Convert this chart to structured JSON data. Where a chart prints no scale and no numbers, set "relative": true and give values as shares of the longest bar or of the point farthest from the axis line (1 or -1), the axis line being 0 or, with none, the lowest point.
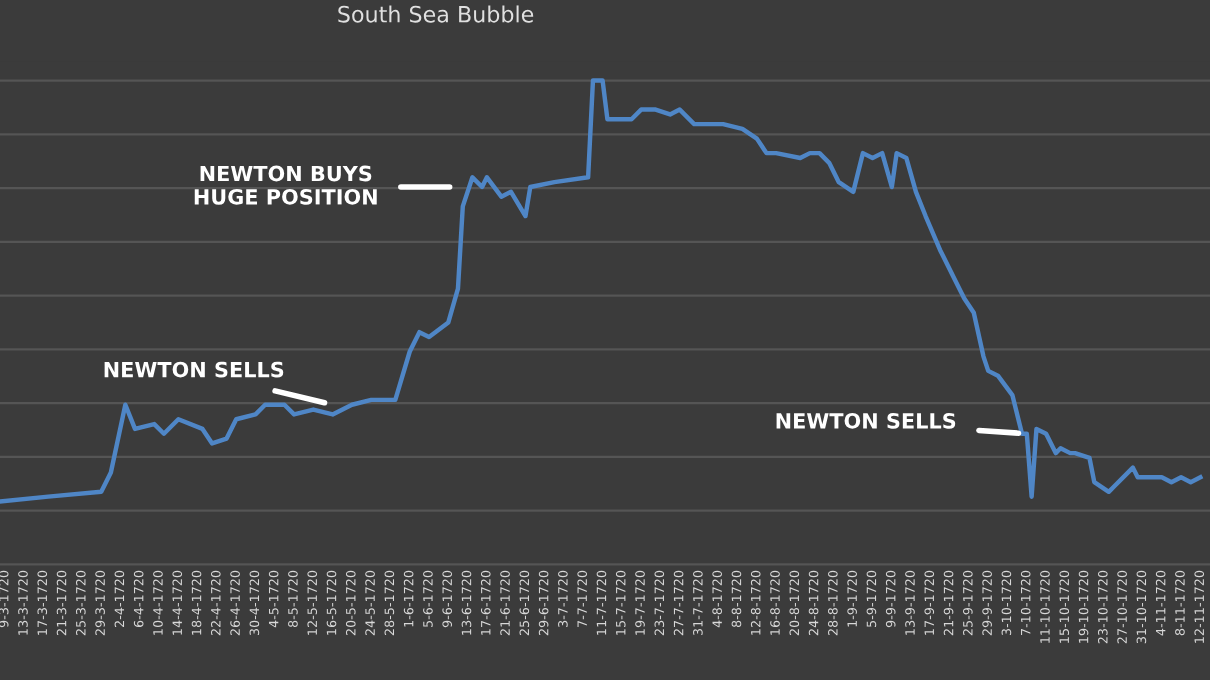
{
  "chart_data": {
    "type": "line",
    "title": "South Sea Bubble",
    "relative": true,
    "grid": "y",
    "tick_labels": "x",
    "marker": "none",
    "line_style": "solid",
    "x": [
      "1720-03-08",
      "1720-03-18",
      "1720-03-29",
      "1720-03-31",
      "1720-04-03",
      "1720-04-05",
      "1720-04-09",
      "1720-04-11",
      "1720-04-14",
      "1720-04-19",
      "1720-04-21",
      "1720-04-24",
      "1720-04-26",
      "1720-04-30",
      "1720-05-02",
      "1720-05-06",
      "1720-05-08",
      "1720-05-12",
      "1720-05-16",
      "1720-05-20",
      "1720-05-24",
      "1720-05-29",
      "1720-06-01",
      "1720-06-03",
      "1720-06-05",
      "1720-06-09",
      "1720-06-11",
      "1720-06-12",
      "1720-06-14",
      "1720-06-16",
      "1720-06-17",
      "1720-06-20",
      "1720-06-22",
      "1720-06-25",
      "1720-06-26",
      "1720-07-01",
      "1720-07-08",
      "1720-07-09",
      "1720-07-11",
      "1720-07-12",
      "1720-07-17",
      "1720-07-19",
      "1720-07-22",
      "1720-07-25",
      "1720-07-27",
      "1720-07-30",
      "1720-08-05",
      "1720-08-09",
      "1720-08-12",
      "1720-08-14",
      "1720-08-16",
      "1720-08-21",
      "1720-08-23",
      "1720-08-25",
      "1720-08-27",
      "1720-08-29",
      "1720-09-01",
      "1720-09-03",
      "1720-09-05",
      "1720-09-07",
      "1720-09-09",
      "1720-09-10",
      "1720-09-12",
      "1720-09-14",
      "1720-09-16",
      "1720-09-19",
      "1720-09-22",
      "1720-09-24",
      "1720-09-26",
      "1720-09-28",
      "1720-09-29",
      "1720-10-01",
      "1720-10-04",
      "1720-10-06",
      "1720-10-07",
      "1720-10-08",
      "1720-10-09",
      "1720-10-11",
      "1720-10-13",
      "1720-10-14",
      "1720-10-16",
      "1720-10-17",
      "1720-10-20",
      "1720-10-21",
      "1720-10-24",
      "1720-10-25",
      "1720-10-29",
      "1720-10-30",
      "1720-11-04",
      "1720-11-06",
      "1720-11-08",
      "1720-11-10",
      "1720-11-12"
    ],
    "series": [
      {
        "color": "#4f86c6",
        "values": [
          0.13,
          0.14,
          0.15,
          0.19,
          0.33,
          0.28,
          0.29,
          0.27,
          0.3,
          0.28,
          0.25,
          0.26,
          0.3,
          0.31,
          0.33,
          0.33,
          0.31,
          0.32,
          0.31,
          0.33,
          0.34,
          0.34,
          0.44,
          0.48,
          0.47,
          0.5,
          0.57,
          0.74,
          0.8,
          0.78,
          0.8,
          0.76,
          0.77,
          0.72,
          0.78,
          0.79,
          0.8,
          1.0,
          1.0,
          0.92,
          0.92,
          0.94,
          0.94,
          0.93,
          0.94,
          0.91,
          0.91,
          0.9,
          0.88,
          0.85,
          0.85,
          0.84,
          0.85,
          0.85,
          0.83,
          0.79,
          0.77,
          0.85,
          0.84,
          0.85,
          0.78,
          0.85,
          0.84,
          0.77,
          0.72,
          0.65,
          0.59,
          0.55,
          0.52,
          0.43,
          0.4,
          0.39,
          0.35,
          0.27,
          0.27,
          0.14,
          0.28,
          0.27,
          0.23,
          0.24,
          0.23,
          0.23,
          0.22,
          0.17,
          0.15,
          0.16,
          0.2,
          0.18,
          0.18,
          0.17,
          0.18,
          0.17,
          0.18
        ]
      }
    ],
    "annotations": [
      {
        "text": "NEWTON SELLS",
        "x": "1720-05-16",
        "y": 0.33
      },
      {
        "text": "NEWTON BUYS\nHUGE POSITION",
        "x": "1720-06-11",
        "y": 0.78
      },
      {
        "text": "NEWTON SELLS",
        "x": "1720-10-07",
        "y": 0.27
      }
    ],
    "xlim": [
      "1720-03-08",
      "1720-11-14"
    ],
    "xticks": [
      {
        "value": "1720-03-09",
        "label": "9-3-1720"
      },
      {
        "value": "1720-03-13",
        "label": "13-3-1720"
      },
      {
        "value": "1720-03-17",
        "label": "17-3-1720"
      },
      {
        "value": "1720-03-21",
        "label": "21-3-1720"
      },
      {
        "value": "1720-03-25",
        "label": "25-3-1720"
      },
      {
        "value": "1720-03-29",
        "label": "29-3-1720"
      },
      {
        "value": "1720-04-02",
        "label": "2-4-1720"
      },
      {
        "value": "1720-04-06",
        "label": "6-4-1720"
      },
      {
        "value": "1720-04-10",
        "label": "10-4-1720"
      },
      {
        "value": "1720-04-14",
        "label": "14-4-1720"
      },
      {
        "value": "1720-04-18",
        "label": "18-4-1720"
      },
      {
        "value": "1720-04-22",
        "label": "22-4-1720"
      },
      {
        "value": "1720-04-26",
        "label": "26-4-1720"
      },
      {
        "value": "1720-04-30",
        "label": "30-4-1720"
      },
      {
        "value": "1720-05-04",
        "label": "4-5-1720"
      },
      {
        "value": "1720-05-08",
        "label": "8-5-1720"
      },
      {
        "value": "1720-05-12",
        "label": "12-5-1720"
      },
      {
        "value": "1720-05-16",
        "label": "16-5-1720"
      },
      {
        "value": "1720-05-20",
        "label": "20-5-1720"
      },
      {
        "value": "1720-05-24",
        "label": "24-5-1720"
      },
      {
        "value": "1720-05-28",
        "label": "28-5-1720"
      },
      {
        "value": "1720-06-01",
        "label": "1-6-1720"
      },
      {
        "value": "1720-06-05",
        "label": "5-6-1720"
      },
      {
        "value": "1720-06-09",
        "label": "9-6-1720"
      },
      {
        "value": "1720-06-13",
        "label": "13-6-1720"
      },
      {
        "value": "1720-06-17",
        "label": "17-6-1720"
      },
      {
        "value": "1720-06-21",
        "label": "21-6-1720"
      },
      {
        "value": "1720-06-25",
        "label": "25-6-1720"
      },
      {
        "value": "1720-06-29",
        "label": "29-6-1720"
      },
      {
        "value": "1720-07-03",
        "label": "3-7-1720"
      },
      {
        "value": "1720-07-07",
        "label": "7-7-1720"
      },
      {
        "value": "1720-07-11",
        "label": "11-7-1720"
      },
      {
        "value": "1720-07-15",
        "label": "15-7-1720"
      },
      {
        "value": "1720-07-19",
        "label": "19-7-1720"
      },
      {
        "value": "1720-07-23",
        "label": "23-7-1720"
      },
      {
        "value": "1720-07-27",
        "label": "27-7-1720"
      },
      {
        "value": "1720-07-31",
        "label": "31-7-1720"
      },
      {
        "value": "1720-08-04",
        "label": "4-8-1720"
      },
      {
        "value": "1720-08-08",
        "label": "8-8-1720"
      },
      {
        "value": "1720-08-12",
        "label": "12-8-1720"
      },
      {
        "value": "1720-08-16",
        "label": "16-8-1720"
      },
      {
        "value": "1720-08-20",
        "label": "20-8-1720"
      },
      {
        "value": "1720-08-24",
        "label": "24-8-1720"
      },
      {
        "value": "1720-08-28",
        "label": "28-8-1720"
      },
      {
        "value": "1720-09-01",
        "label": "1-9-1720"
      },
      {
        "value": "1720-09-05",
        "label": "5-9-1720"
      },
      {
        "value": "1720-09-09",
        "label": "9-9-1720"
      },
      {
        "value": "1720-09-13",
        "label": "13-9-1720"
      },
      {
        "value": "1720-09-17",
        "label": "17-9-1720"
      },
      {
        "value": "1720-09-21",
        "label": "21-9-1720"
      },
      {
        "value": "1720-09-25",
        "label": "25-9-1720"
      },
      {
        "value": "1720-09-29",
        "label": "29-9-1720"
      },
      {
        "value": "1720-10-03",
        "label": "3-10-1720"
      },
      {
        "value": "1720-10-07",
        "label": "7-10-1720"
      },
      {
        "value": "1720-10-11",
        "label": "11-10-1720"
      },
      {
        "value": "1720-10-15",
        "label": "15-10-1720"
      },
      {
        "value": "1720-10-19",
        "label": "19-10-1720"
      },
      {
        "value": "1720-10-23",
        "label": "23-10-1720"
      },
      {
        "value": "1720-10-27",
        "label": "27-10-1720"
      },
      {
        "value": "1720-10-31",
        "label": "31-10-1720"
      },
      {
        "value": "1720-11-04",
        "label": "4-11-1720"
      },
      {
        "value": "1720-11-08",
        "label": "8-11-1720"
      },
      {
        "value": "1720-11-12",
        "label": "12-11-1720"
      }
    ]
  }
}
